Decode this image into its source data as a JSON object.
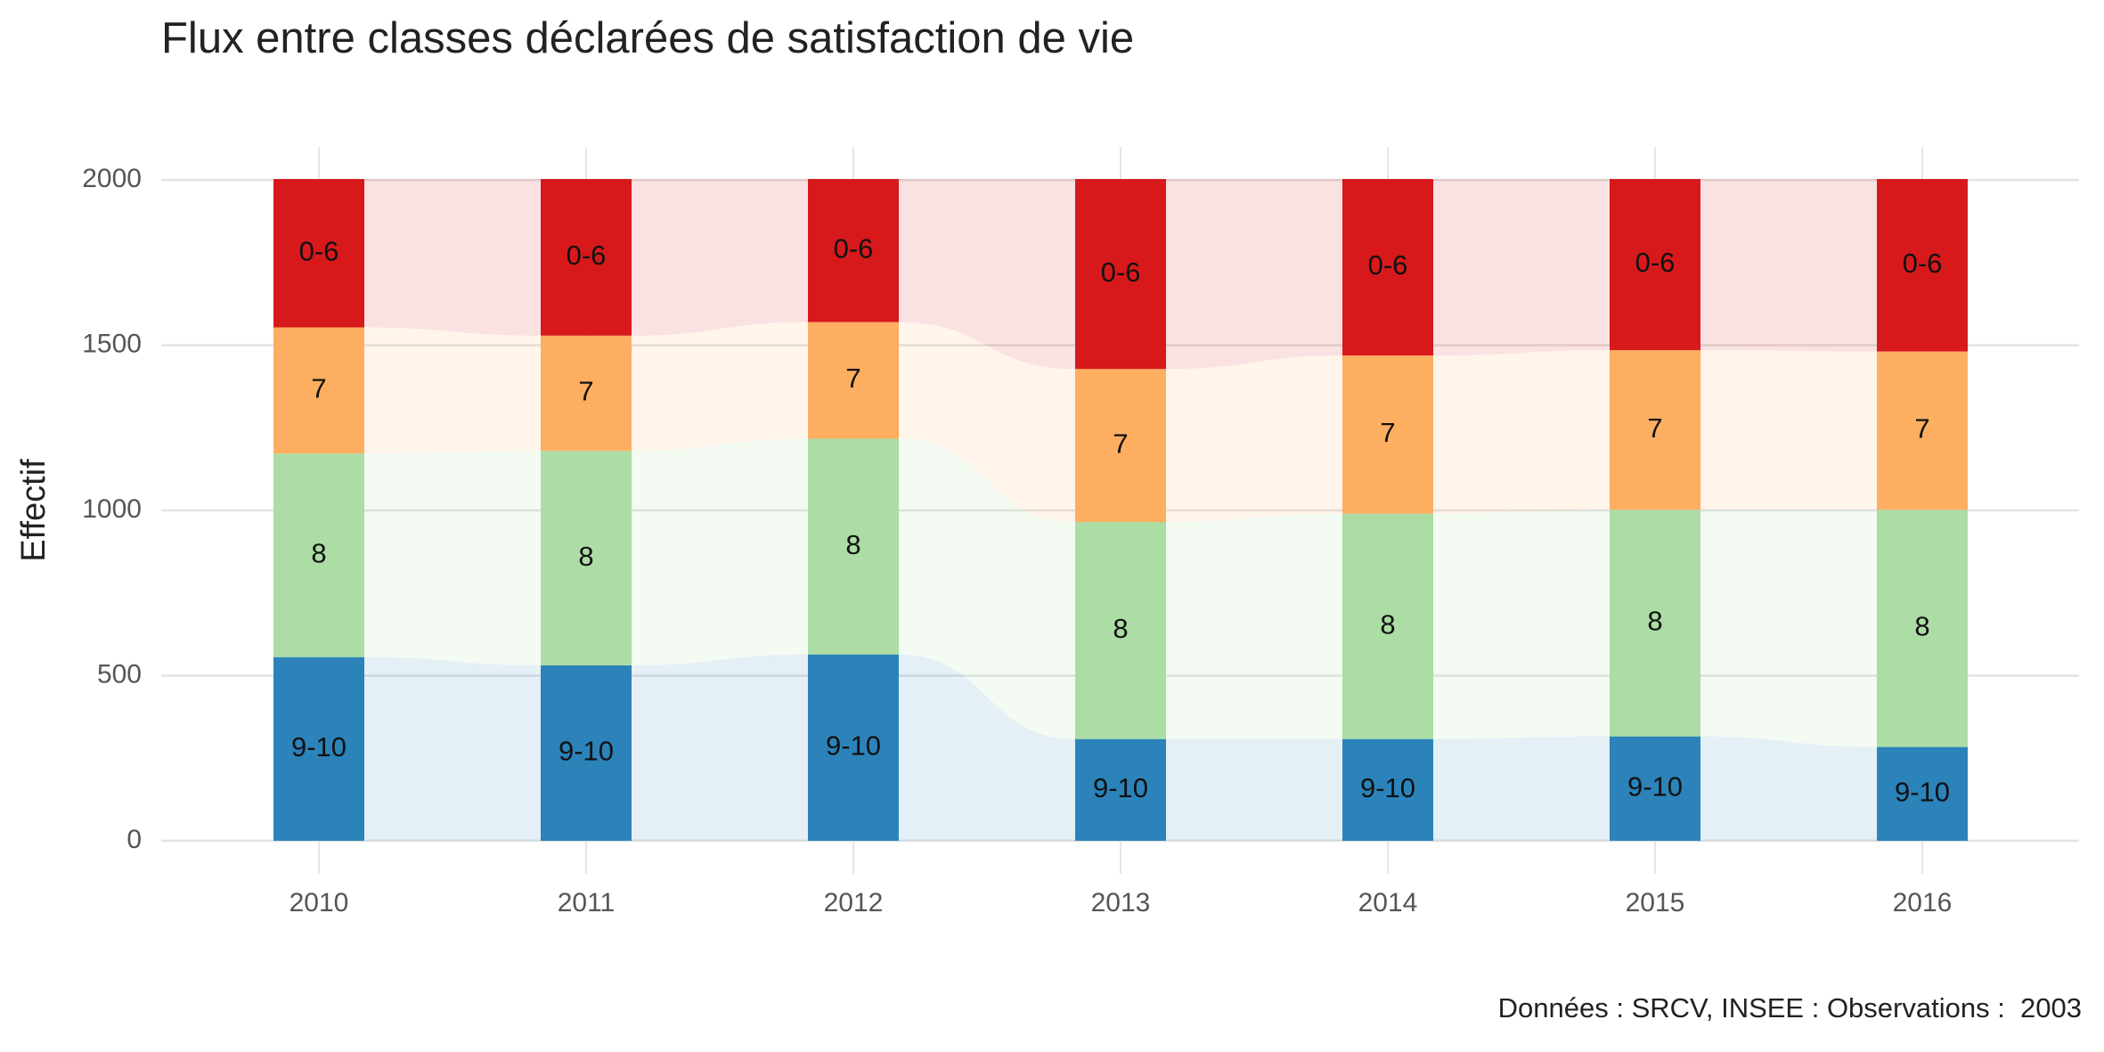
{
  "chart_data": {
    "type": "alluvial",
    "title": "Flux entre classes déclarées de satisfaction de vie",
    "y_label": "Effectif",
    "caption": "Données : SRCV, INSEE : Observations :  2003",
    "categories": [
      "2010",
      "2011",
      "2012",
      "2013",
      "2014",
      "2015",
      "2016"
    ],
    "series": [
      {
        "name": "9-10",
        "color": "#2b83ba",
        "values": [
          556,
          531,
          564,
          308,
          308,
          316,
          284
        ]
      },
      {
        "name": "8",
        "color": "#abdda4",
        "values": [
          616,
          649,
          653,
          657,
          682,
          686,
          718
        ]
      },
      {
        "name": "7",
        "color": "#fdae61",
        "values": [
          382,
          349,
          353,
          463,
          479,
          483,
          479
        ]
      },
      {
        "name": "0-6",
        "color": "#d7191c",
        "values": [
          449,
          474,
          433,
          575,
          534,
          518,
          522
        ]
      }
    ],
    "ylim": [
      -100,
      2100
    ],
    "yticks": [
      0,
      500,
      1000,
      1500,
      2000
    ],
    "grid": true
  }
}
